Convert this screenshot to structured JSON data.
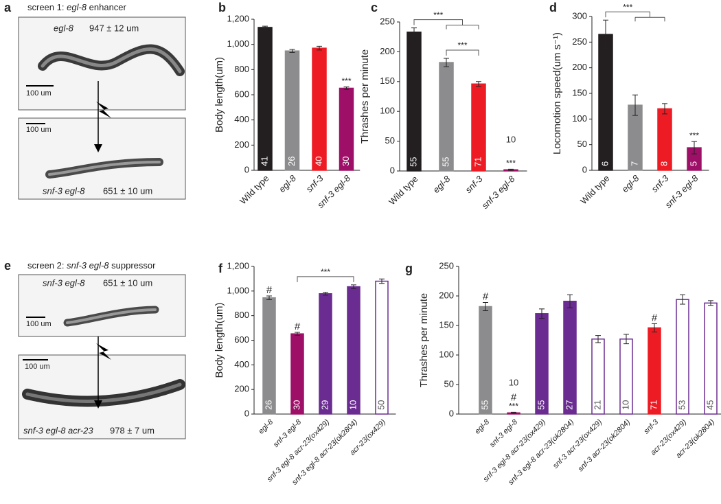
{
  "image_panels": [
    {
      "label": "a",
      "title": {
        "prefix": "screen 1:",
        "gene": "egl-8",
        "suffix": "enhancer"
      },
      "images": [
        {
          "genotype": "egl-8",
          "length": "947 ± 12 um",
          "scale": "100 um"
        },
        {
          "genotype": "snf-3 egl-8",
          "length": "651 ± 10 um",
          "scale": "100 um"
        }
      ]
    },
    {
      "label": "e",
      "title": {
        "prefix": "screen 2:",
        "gene": "snf-3 egl-8",
        "suffix": "suppressor"
      },
      "images": [
        {
          "genotype": "snf-3 egl-8",
          "length": "651 ± 10 um",
          "scale": "100 um"
        },
        {
          "genotype": "snf-3 egl-8 acr-23",
          "length": "978 ± 7 um",
          "scale": "100 um"
        }
      ]
    }
  ],
  "chart_data": [
    {
      "type": "bar",
      "label": "b",
      "ylabel": "Body length(um)",
      "categories": [
        "Wild type",
        "egl-8",
        "snf-3",
        "snf-3 egl-8"
      ],
      "category_italic": [
        false,
        true,
        true,
        true
      ],
      "values": [
        1135,
        948,
        970,
        652
      ],
      "errors": [
        10,
        12,
        15,
        10
      ],
      "counts": [
        41,
        26,
        40,
        30
      ],
      "colors": [
        "#231f20",
        "#8c8c8e",
        "#ed1c24",
        "#9e1068"
      ],
      "edge_colors": [
        "#231f20",
        "#8c8c8e",
        "#ed1c24",
        "#9e1068"
      ],
      "marks": [
        [],
        [],
        [],
        [
          "***"
        ]
      ],
      "brackets": [],
      "ylim": [
        0,
        1200
      ],
      "yticks": [
        0,
        200,
        400,
        600,
        800,
        {
          "value": 1000,
          "label": "1,000"
        },
        {
          "value": 1200,
          "label": "1,200"
        }
      ]
    },
    {
      "type": "bar",
      "label": "c",
      "ylabel": "Thrashes per minute",
      "categories": [
        "Wild type",
        "egl-8",
        "snf-3",
        "snf-3 egl-8"
      ],
      "category_italic": [
        false,
        true,
        true,
        true
      ],
      "values": [
        233,
        182,
        146,
        2
      ],
      "errors": [
        7,
        7,
        4,
        1
      ],
      "counts": [
        55,
        55,
        71,
        10
      ],
      "colors": [
        "#231f20",
        "#8c8c8e",
        "#ed1c24",
        "#9e1068"
      ],
      "edge_colors": [
        "#231f20",
        "#8c8c8e",
        "#ed1c24",
        "#9e1068"
      ],
      "marks": [
        [],
        [],
        [],
        [
          "***"
        ]
      ],
      "brackets": [
        {
          "label": "***",
          "from": 0,
          "to": [
            1,
            2
          ]
        },
        {
          "label": "***",
          "from": 1,
          "to": [
            2
          ]
        }
      ],
      "ylim": [
        0,
        250
      ],
      "yticks": [
        0,
        50,
        100,
        150,
        200,
        250
      ]
    },
    {
      "type": "bar",
      "label": "d",
      "ylabel": "Locomotion speed(um s⁻¹)",
      "categories": [
        "Wild type",
        "egl-8",
        "snf-3",
        "snf-3 egl-8"
      ],
      "category_italic": [
        false,
        true,
        true,
        true
      ],
      "values": [
        265,
        127,
        120,
        44
      ],
      "errors": [
        28,
        20,
        10,
        12
      ],
      "counts": [
        6,
        7,
        8,
        5
      ],
      "colors": [
        "#231f20",
        "#8c8c8e",
        "#ed1c24",
        "#9e1068"
      ],
      "edge_colors": [
        "#231f20",
        "#8c8c8e",
        "#ed1c24",
        "#9e1068"
      ],
      "marks": [
        [],
        [],
        [],
        [
          "***"
        ]
      ],
      "brackets": [
        {
          "label": "***",
          "from": 0,
          "to": [
            1,
            2
          ]
        }
      ],
      "ylim": [
        0,
        300
      ],
      "yticks": [
        0,
        50,
        100,
        150,
        200,
        250,
        300
      ]
    },
    {
      "type": "bar",
      "label": "f",
      "ylabel": "Body length(um)",
      "categories": [
        "egl-8",
        "snf-3 egl-8",
        "snf-3 egl-8 acr-23(ox429)",
        "snf-3 egl-8 acr-23(ok2804)",
        "acr-23(ox429)"
      ],
      "category_italic": [
        true,
        true,
        true,
        true,
        true
      ],
      "values": [
        945,
        652,
        978,
        1035,
        1080
      ],
      "errors": [
        15,
        12,
        12,
        15,
        18
      ],
      "counts": [
        26,
        30,
        29,
        10,
        50
      ],
      "colors": [
        "#8c8c8e",
        "#9e1068",
        "#6b2c91",
        "#6b2c91",
        "#ffffff"
      ],
      "edge_colors": [
        "#8c8c8e",
        "#9e1068",
        "#6b2c91",
        "#6b2c91",
        "#6b2c91"
      ],
      "marks": [
        [
          "#"
        ],
        [
          "#"
        ],
        [],
        [],
        []
      ],
      "brackets": [
        {
          "label": "***",
          "from": 1,
          "to": [
            3
          ]
        }
      ],
      "ylim": [
        0,
        1200
      ],
      "yticks": [
        0,
        200,
        400,
        600,
        800,
        {
          "value": 1000,
          "label": "1,000"
        },
        {
          "value": 1200,
          "label": "1,200"
        }
      ]
    },
    {
      "type": "bar",
      "label": "g",
      "ylabel": "Thrashes per minute",
      "categories": [
        "egl-8",
        "snf-3 egl-8",
        "snf-3 egl-8 acr-23(ox429)",
        "snf-3 egl-8 acr-23(ok2804)",
        "snf-3 acr-23(ox429)",
        "snf-3 acr-23(ok2804)",
        "snf-3",
        "acr-23(ox429)",
        "acr-23(ok2804)"
      ],
      "category_italic": [
        true,
        true,
        true,
        true,
        true,
        true,
        true,
        true,
        true
      ],
      "values": [
        182,
        2,
        170,
        191,
        127,
        127,
        146,
        194,
        188
      ],
      "errors": [
        7,
        1,
        8,
        11,
        6,
        8,
        7,
        8,
        4
      ],
      "counts": [
        55,
        10,
        55,
        27,
        21,
        10,
        71,
        53,
        45
      ],
      "colors": [
        "#8c8c8e",
        "#9e1068",
        "#6b2c91",
        "#6b2c91",
        "#ffffff",
        "#ffffff",
        "#ed1c24",
        "#ffffff",
        "#ffffff"
      ],
      "edge_colors": [
        "#8c8c8e",
        "#9e1068",
        "#6b2c91",
        "#6b2c91",
        "#6b2c91",
        "#6b2c91",
        "#ed1c24",
        "#6b2c91",
        "#6b2c91"
      ],
      "marks": [
        [
          "#"
        ],
        [
          "***",
          "#"
        ],
        [],
        [],
        [],
        [],
        [
          "#"
        ],
        [],
        []
      ],
      "brackets": [],
      "ylim": [
        0,
        250
      ],
      "yticks": [
        0,
        50,
        100,
        150,
        200,
        250
      ]
    }
  ]
}
